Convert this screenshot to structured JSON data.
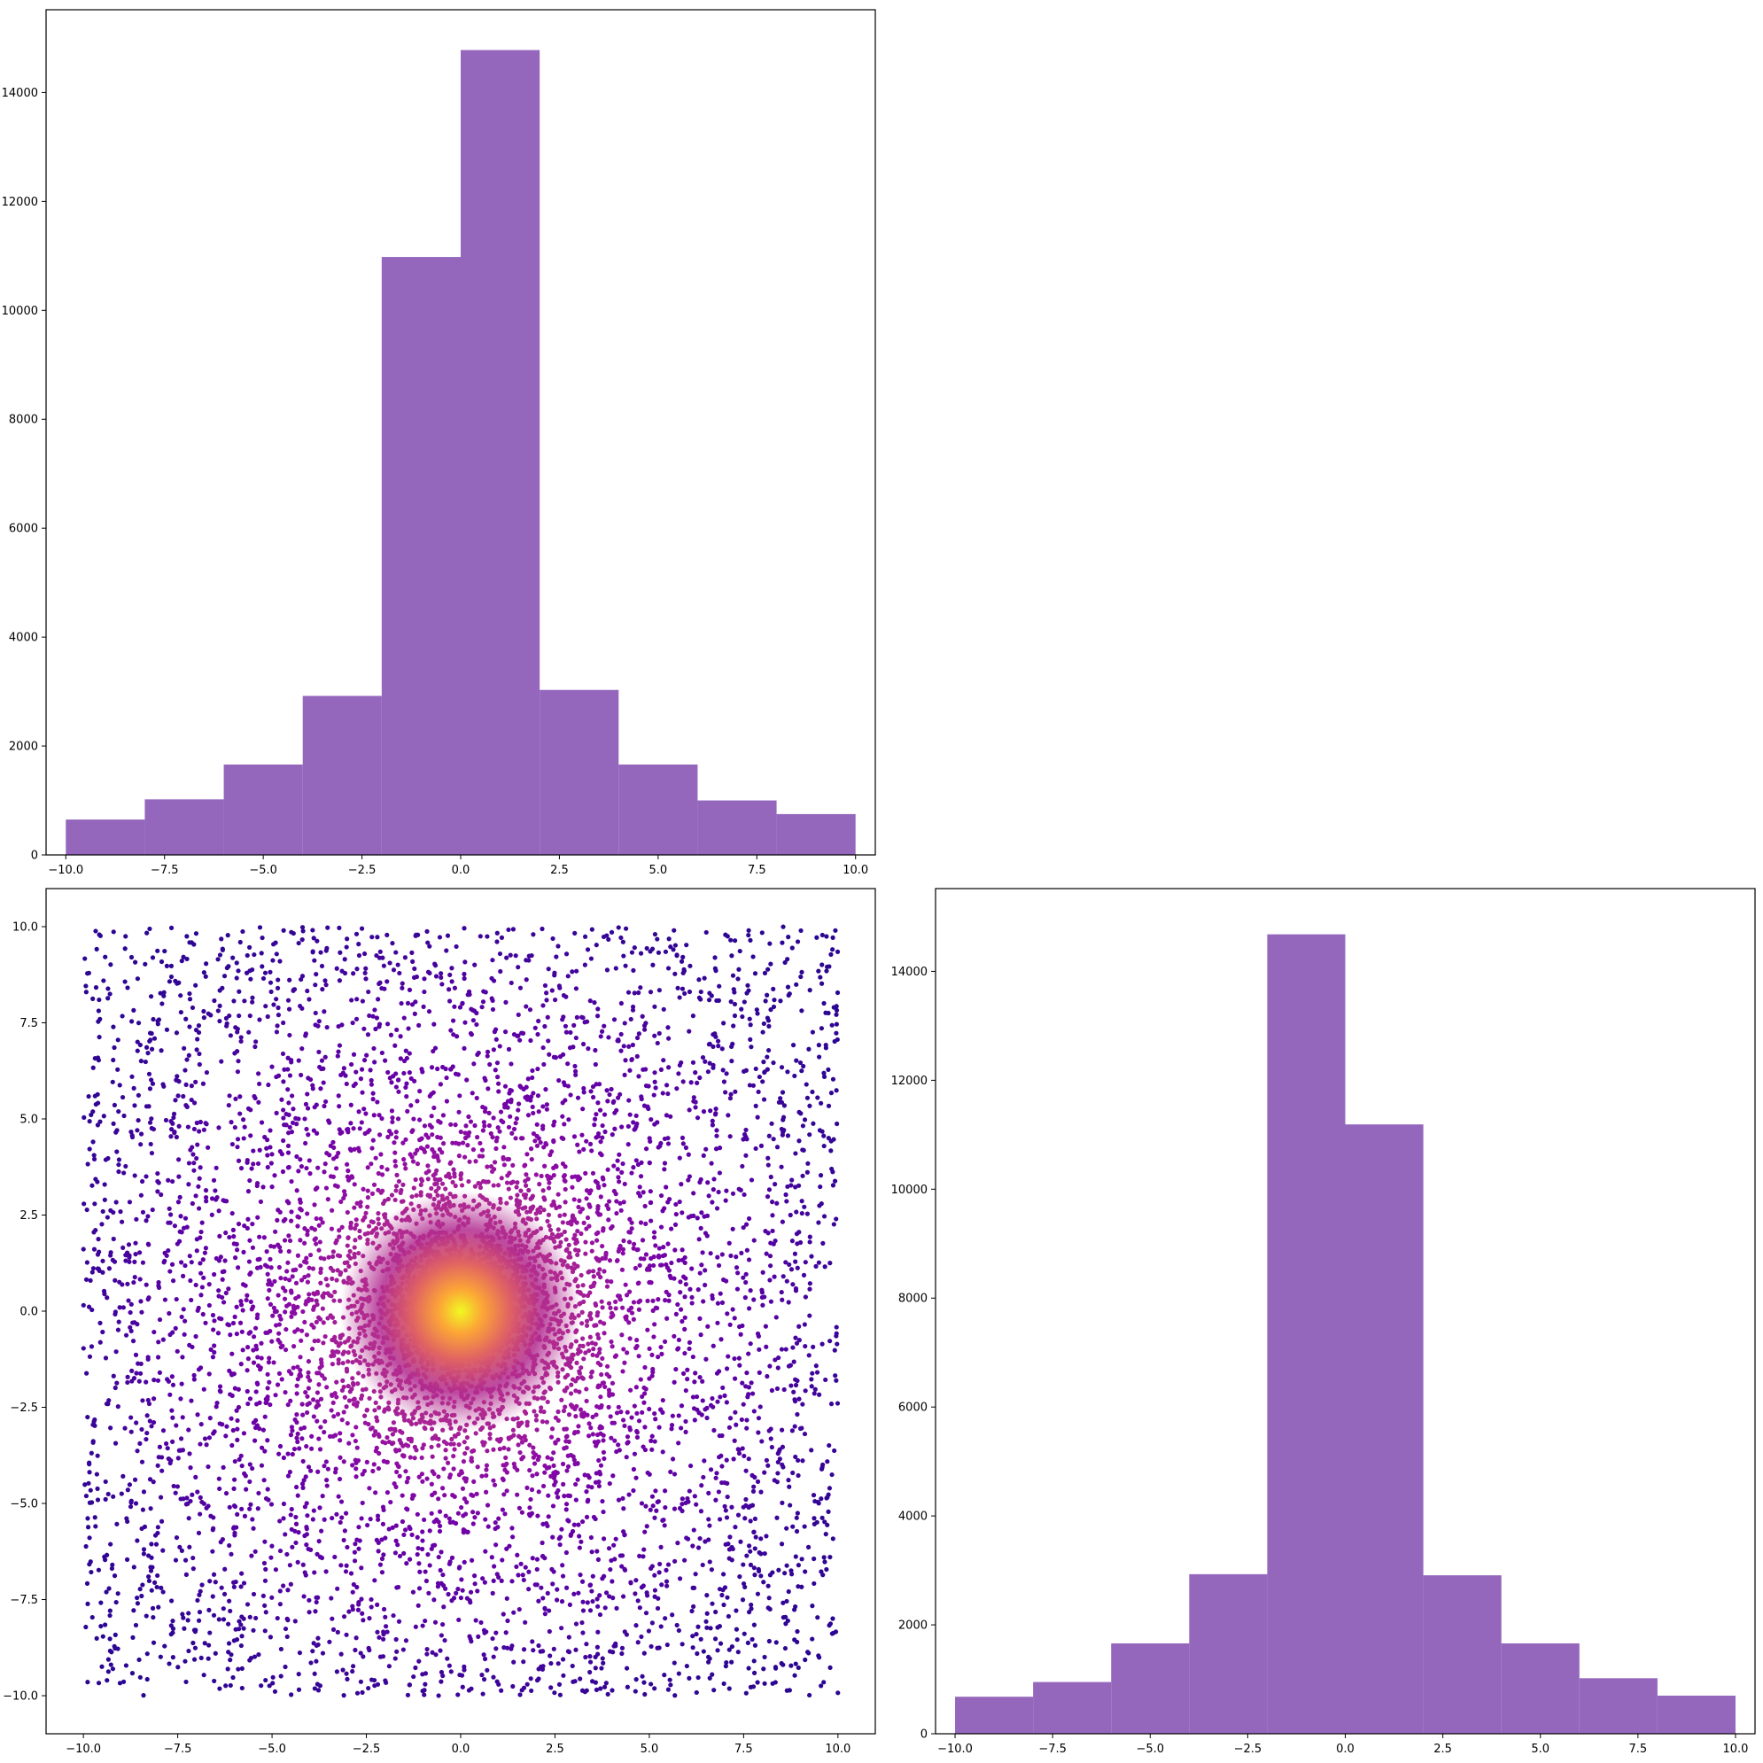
{
  "colors": {
    "hist_bar": "#9467bd",
    "axes_frame": "#000000",
    "scatter_colormap": [
      "#0d0887",
      "#6a00a8",
      "#b12a90",
      "#e16462",
      "#fca636",
      "#f0f921"
    ]
  },
  "chart_data": [
    {
      "type": "bar",
      "id": "top-left-histogram",
      "title": "",
      "xlabel": "",
      "ylabel": "",
      "bin_edges": [
        -10,
        -8,
        -6,
        -4,
        -2,
        0,
        2,
        4,
        6,
        8,
        10
      ],
      "values": [
        650,
        1020,
        1660,
        2920,
        10980,
        14780,
        3030,
        1660,
        1000,
        750
      ],
      "xlim": [
        -10.5,
        10.5
      ],
      "ylim": [
        0,
        15520
      ],
      "xticks": [
        -10,
        -7.5,
        -5,
        -2.5,
        0,
        2.5,
        5,
        7.5,
        10
      ],
      "xtick_labels": [
        "−10.0",
        "−7.5",
        "−5.0",
        "−2.5",
        "0.0",
        "2.5",
        "5.0",
        "7.5",
        "10.0"
      ],
      "yticks": [
        0,
        2000,
        4000,
        6000,
        8000,
        10000,
        12000,
        14000
      ],
      "ytick_labels": [
        "0",
        "2000",
        "4000",
        "6000",
        "8000",
        "10000",
        "12000",
        "14000"
      ],
      "grid": false
    },
    {
      "type": "scatter",
      "id": "bottom-left-scatter",
      "title": "",
      "xlabel": "",
      "ylabel": "",
      "x_range": [
        -10,
        10
      ],
      "y_range": [
        -10,
        10
      ],
      "distribution": "uniform points in square with dense gaussian core at origin; colour by density (plasma)",
      "xlim": [
        -10.99,
        10.99
      ],
      "ylim": [
        -10.99,
        10.99
      ],
      "xticks": [
        -10,
        -7.5,
        -5,
        -2.5,
        0,
        2.5,
        5,
        7.5,
        10
      ],
      "xtick_labels": [
        "−10.0",
        "−7.5",
        "−5.0",
        "−2.5",
        "0.0",
        "2.5",
        "5.0",
        "7.5",
        "10.0"
      ],
      "yticks": [
        -10,
        -7.5,
        -5,
        -2.5,
        0,
        2.5,
        5,
        7.5,
        10
      ],
      "ytick_labels": [
        "−10.0",
        "−7.5",
        "−5.0",
        "−2.5",
        "0.0",
        "2.5",
        "5.0",
        "7.5",
        "10.0"
      ],
      "grid": false
    },
    {
      "type": "bar",
      "id": "bottom-right-histogram",
      "title": "",
      "xlabel": "",
      "ylabel": "",
      "bin_edges": [
        -10,
        -8,
        -6,
        -4,
        -2,
        0,
        2,
        4,
        6,
        8,
        10
      ],
      "values": [
        680,
        950,
        1660,
        2930,
        14680,
        11190,
        2910,
        1660,
        1020,
        700
      ],
      "xlim": [
        -10.5,
        10.5
      ],
      "ylim": [
        0,
        15520
      ],
      "xticks": [
        -10,
        -7.5,
        -5,
        -2.5,
        0,
        2.5,
        5,
        7.5,
        10
      ],
      "xtick_labels": [
        "−10.0",
        "−7.5",
        "−5.0",
        "−2.5",
        "0.0",
        "2.5",
        "5.0",
        "7.5",
        "10.0"
      ],
      "yticks": [
        0,
        2000,
        4000,
        6000,
        8000,
        10000,
        12000,
        14000
      ],
      "ytick_labels": [
        "0",
        "2000",
        "4000",
        "6000",
        "8000",
        "10000",
        "12000",
        "14000"
      ],
      "grid": false
    }
  ]
}
